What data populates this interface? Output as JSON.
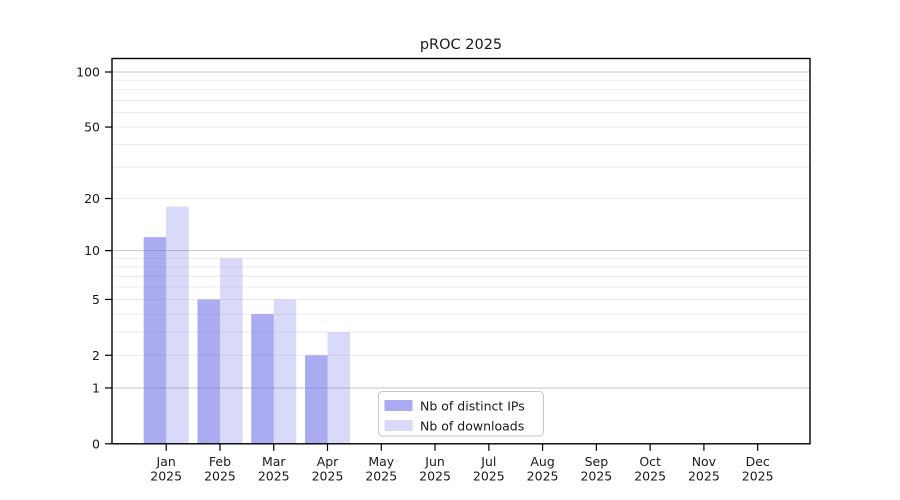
{
  "chart_data": {
    "type": "bar",
    "title": "pROC 2025",
    "x_months": [
      "Jan",
      "Feb",
      "Mar",
      "Apr",
      "May",
      "Jun",
      "Jul",
      "Aug",
      "Sep",
      "Oct",
      "Nov",
      "Dec"
    ],
    "x_year": "2025",
    "series": [
      {
        "name": "Nb of distinct IPs",
        "slug": "distinct-ips",
        "values": [
          12,
          5,
          4,
          2,
          0,
          0,
          0,
          0,
          0,
          0,
          0,
          0
        ],
        "color": "#6666e8",
        "fill_opacity": 0.55
      },
      {
        "name": "Nb of downloads",
        "slug": "downloads",
        "values": [
          18,
          9,
          5,
          3,
          0,
          0,
          0,
          0,
          0,
          0,
          0,
          0
        ],
        "color": "#6666e8",
        "fill_opacity": 0.25
      }
    ],
    "y_axis": {
      "scale": "log10(1+x)",
      "tick_values": [
        100,
        50,
        20,
        10,
        5,
        2,
        1,
        0
      ],
      "major_grid_values": [
        1,
        10,
        100
      ],
      "minor_grid_values": [
        2,
        3,
        4,
        5,
        6,
        7,
        8,
        9,
        20,
        30,
        40,
        50,
        60,
        70,
        80,
        90
      ],
      "ylim": [
        0,
        119
      ]
    },
    "legend_position": "bottom-center-inside",
    "grid": true
  },
  "colors": {
    "background": "#ffffff",
    "axis": "#000000",
    "text": "#1a1a1a",
    "major_gridline": "#c4c4c4",
    "minor_gridline": "#ececec",
    "legend_border": "#c8c8c8"
  }
}
